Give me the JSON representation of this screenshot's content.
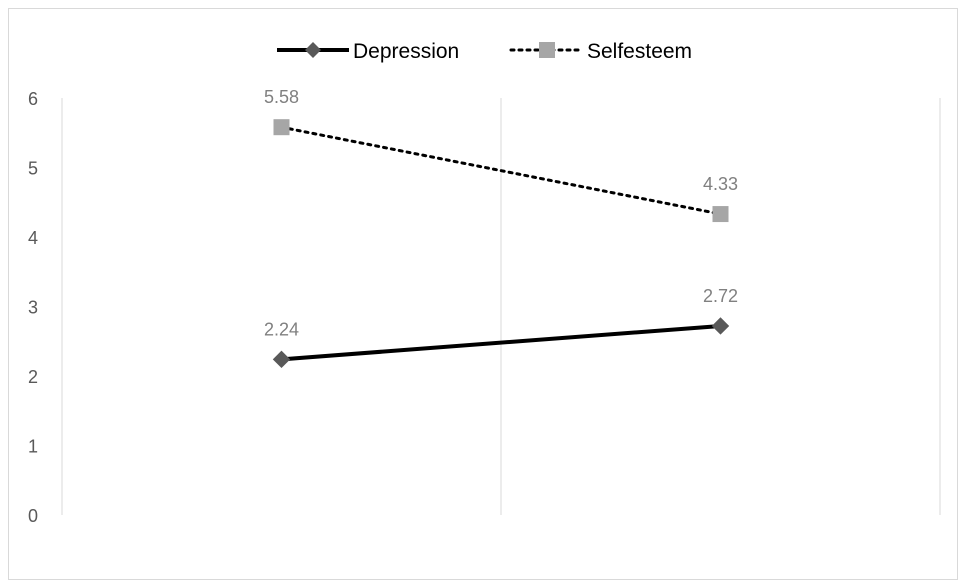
{
  "chart_data": {
    "type": "line",
    "title": "",
    "xlabel": "",
    "ylabel": "",
    "categories": [
      "",
      ""
    ],
    "ylim": [
      0,
      6
    ],
    "y_ticks": [
      "0",
      "1",
      "2",
      "3",
      "4",
      "5",
      "6"
    ],
    "grid": "vertical category gridlines",
    "legend_position": "top-center",
    "series": [
      {
        "name": "Depression",
        "values": [
          2.24,
          2.72
        ],
        "data_labels": [
          "2.24",
          "2.72"
        ],
        "color": "#000000",
        "marker_color": "#595959",
        "marker": "diamond",
        "line_style": "solid"
      },
      {
        "name": "Selfesteem",
        "values": [
          5.58,
          4.33
        ],
        "data_labels": [
          "5.58",
          "4.33"
        ],
        "color": "#000000",
        "marker_color": "#a6a6a6",
        "marker": "square",
        "line_style": "dotted"
      }
    ]
  }
}
